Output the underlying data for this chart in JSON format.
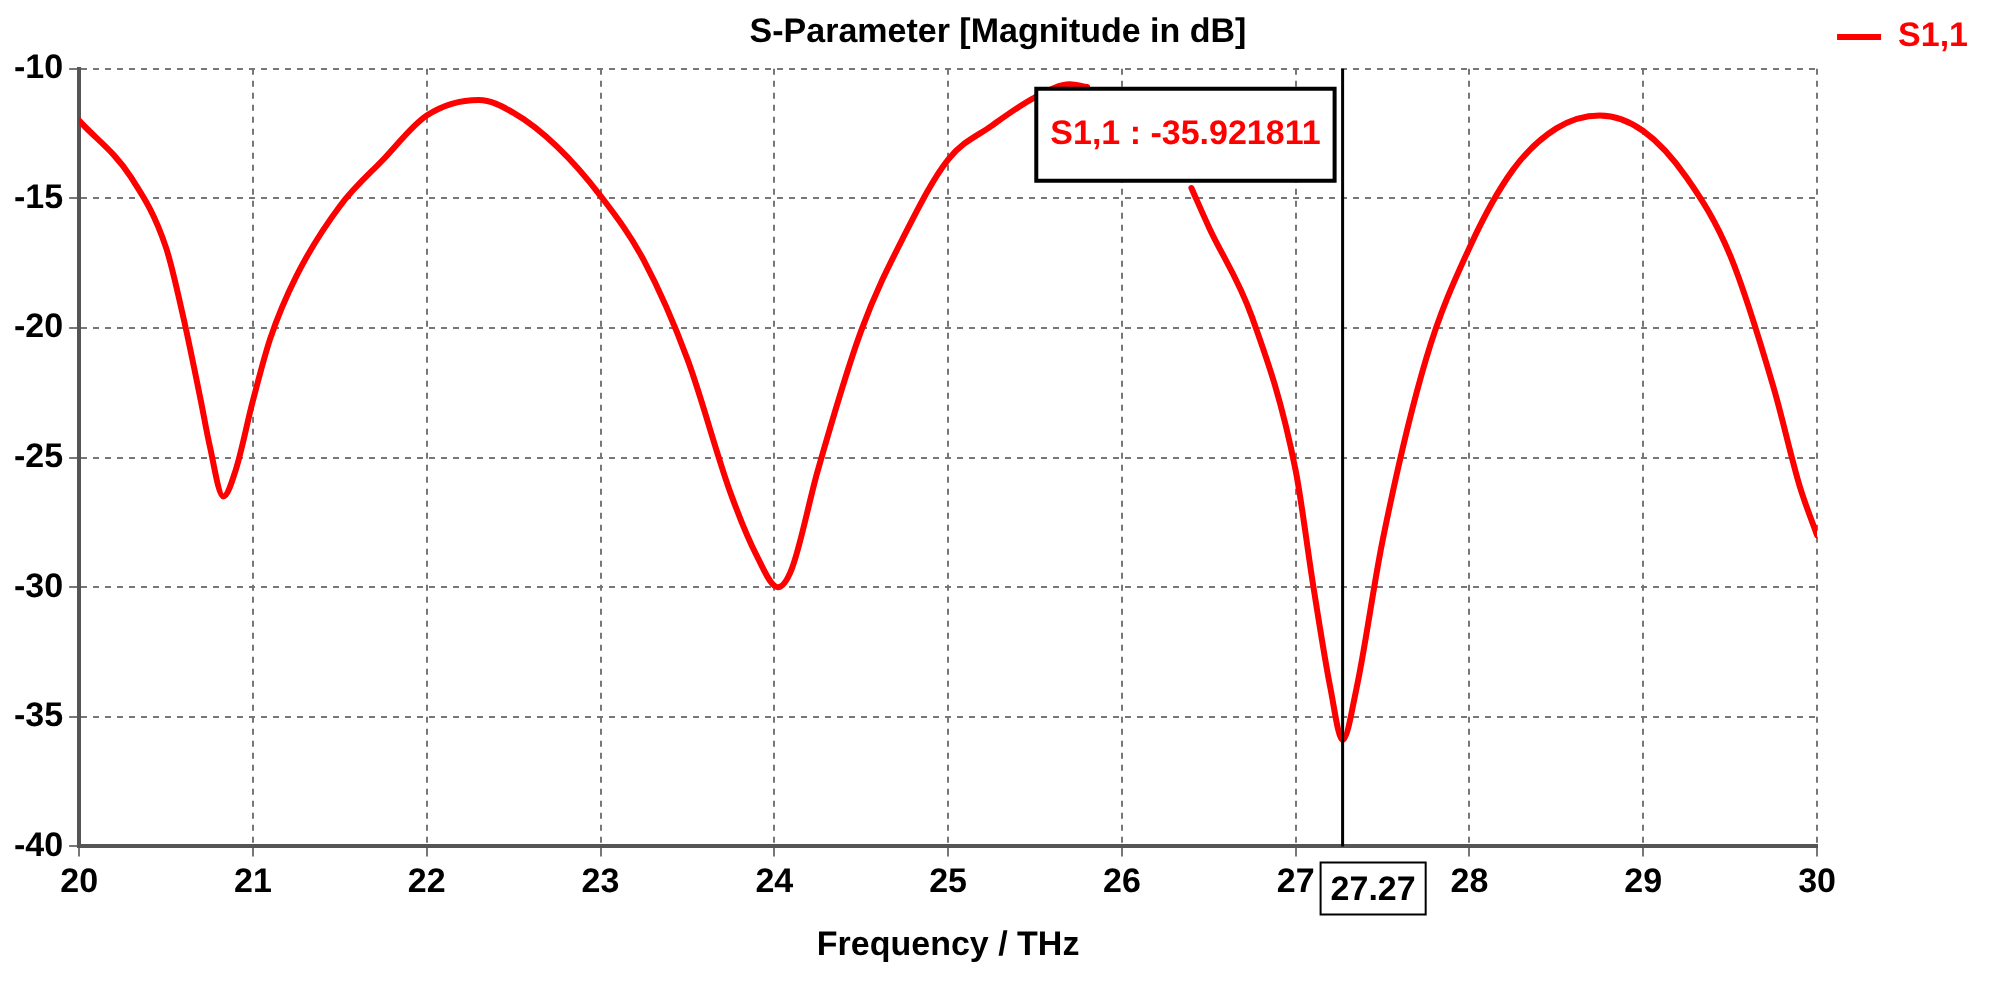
{
  "chart_data": {
    "type": "line",
    "title": "S-Parameter [Magnitude in dB]",
    "xlabel": "Frequency / THz",
    "x": [
      20,
      20.3,
      20.5,
      20.6,
      20.7,
      20.75,
      20.83,
      20.9,
      21,
      21.1,
      21.25,
      21.5,
      21.75,
      22,
      22.3,
      22.5,
      22.75,
      23,
      23.25,
      23.5,
      23.75,
      23.9,
      24.02,
      24.1,
      24.25,
      24.5,
      24.75,
      25,
      25.25,
      25.5,
      25.7,
      25.8,
      26,
      26.2,
      26.4,
      26.5,
      26.75,
      27,
      27.1,
      27.2,
      27.27,
      27.35,
      27.5,
      27.75,
      28,
      28.25,
      28.5,
      28.75,
      29,
      29.25,
      29.5,
      29.75,
      29.9,
      30
    ],
    "series": [
      {
        "name": "S1,1",
        "color": "#ff0000",
        "values": [
          -12,
          -14.2,
          -16.9,
          -19.6,
          -22.8,
          -24.5,
          -26.5,
          -25.5,
          -22.8,
          -20.4,
          -18,
          -15.3,
          -13.5,
          -11.8,
          -11.2,
          -11.7,
          -13,
          -14.9,
          -17.4,
          -21.2,
          -26.4,
          -28.8,
          -30,
          -29.3,
          -25.5,
          -20.1,
          -16.4,
          -13.5,
          -12.2,
          -11.1,
          -10.6,
          -10.7,
          null,
          null,
          -14.6,
          -16.1,
          -19.6,
          -25.5,
          -29.9,
          -33.9,
          -35.9,
          -33.9,
          -28.2,
          -21.2,
          -16.9,
          -13.9,
          -12.3,
          -11.8,
          -12.4,
          -14.2,
          -17.2,
          -22.3,
          -26.1,
          -28
        ]
      }
    ],
    "xlim": [
      20,
      30
    ],
    "xticks": [
      20,
      21,
      22,
      23,
      24,
      25,
      26,
      27,
      28,
      29,
      30
    ],
    "ylim": [
      -40,
      -10
    ],
    "yticks": [
      -40,
      -35,
      -30,
      -25,
      -20,
      -15,
      -10
    ],
    "grid": true,
    "legend": "top right",
    "marker": "none",
    "line_style": "solid",
    "ref_lines": [
      {
        "axis": "x",
        "value": 27.27,
        "label": "27.27",
        "color": "#000000"
      }
    ],
    "annotations": [
      "S1,1 : -35.921811"
    ]
  }
}
